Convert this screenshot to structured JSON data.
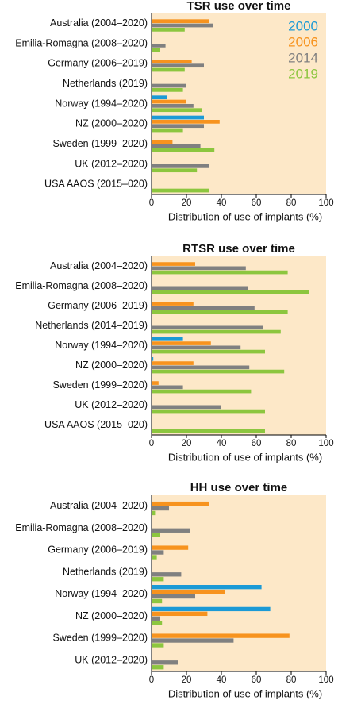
{
  "chart_data": [
    {
      "type": "bar",
      "orientation": "horizontal",
      "title": "TSR use over time",
      "xlabel": "Distribution of use of implants (%)",
      "categories": [
        "Australia (2004–2020)",
        "Emilia-Romagna (2008–2020)",
        "Germany (2006–2019)",
        "Netherlands (2019)",
        "Norway (1994–2020)",
        "NZ (2000–2020)",
        "Sweden (1999–2020)",
        "UK (2012–2020)",
        "USA AAOS (2015–020)"
      ],
      "series": [
        {
          "name": "2000",
          "color": "#1b9ad6",
          "values": [
            null,
            null,
            null,
            null,
            9,
            30,
            null,
            null,
            null
          ]
        },
        {
          "name": "2006",
          "color": "#f7931e",
          "values": [
            33,
            null,
            23,
            null,
            20,
            39,
            12,
            null,
            null
          ]
        },
        {
          "name": "2014",
          "color": "#808080",
          "values": [
            35,
            8,
            30,
            20,
            24,
            30,
            28,
            33,
            null
          ]
        },
        {
          "name": "2019",
          "color": "#8cc63f",
          "values": [
            19,
            5,
            19,
            18,
            29,
            18,
            36,
            26,
            33
          ]
        }
      ],
      "xlim": [
        0,
        100
      ],
      "xticks": [
        0,
        20,
        40,
        60,
        80,
        100
      ],
      "legend": "upper right",
      "background": "#fde8c8"
    },
    {
      "type": "bar",
      "orientation": "horizontal",
      "title": "RTSR use over time",
      "xlabel": "Distribution of use of implants (%)",
      "categories": [
        "Australia (2004–2020)",
        "Emilia-Romagna (2008–2020)",
        "Germany (2006–2019)",
        "Netherlands (2014–2019)",
        "Norway (1994–2020)",
        "NZ (2000–2020)",
        "Sweden (1999–2020)",
        "UK (2012–2020)",
        "USA AAOS (2015–020)"
      ],
      "series": [
        {
          "color": "#1b9ad6",
          "values": [
            null,
            null,
            null,
            null,
            18,
            1,
            null,
            null,
            null
          ]
        },
        {
          "color": "#f7931e",
          "values": [
            25,
            null,
            24,
            null,
            34,
            24,
            4,
            null,
            null
          ]
        },
        {
          "color": "#808080",
          "values": [
            54,
            55,
            59,
            64,
            51,
            56,
            18,
            40,
            null
          ]
        },
        {
          "color": "#8cc63f",
          "values": [
            78,
            90,
            78,
            74,
            65,
            76,
            57,
            65,
            65
          ]
        }
      ],
      "xlim": [
        0,
        100
      ],
      "xticks": [
        0,
        20,
        40,
        60,
        80,
        100
      ],
      "background": "#fde8c8"
    },
    {
      "type": "bar",
      "orientation": "horizontal",
      "title": "HH use over time",
      "xlabel": "Distribution of use of implants (%)",
      "categories": [
        "Australia (2004–2020)",
        "Emilia-Romagna (2008–2020)",
        "Germany (2006–2019)",
        "Netherlands (2019)",
        "Norway (1994–2020)",
        "NZ (2000–2020)",
        "Sweden (1999–2020)",
        "UK (2012–2020)"
      ],
      "series": [
        {
          "color": "#1b9ad6",
          "values": [
            null,
            null,
            null,
            null,
            63,
            68,
            null,
            null
          ]
        },
        {
          "color": "#f7931e",
          "values": [
            33,
            null,
            21,
            null,
            42,
            32,
            79,
            null
          ]
        },
        {
          "color": "#808080",
          "values": [
            10,
            22,
            7,
            17,
            25,
            5,
            47,
            15
          ]
        },
        {
          "color": "#8cc63f",
          "values": [
            2,
            5,
            3,
            7,
            6,
            6,
            7,
            7
          ]
        }
      ],
      "xlim": [
        0,
        100
      ],
      "xticks": [
        0,
        20,
        40,
        60,
        80,
        100
      ],
      "background": "#fde8c8"
    }
  ]
}
